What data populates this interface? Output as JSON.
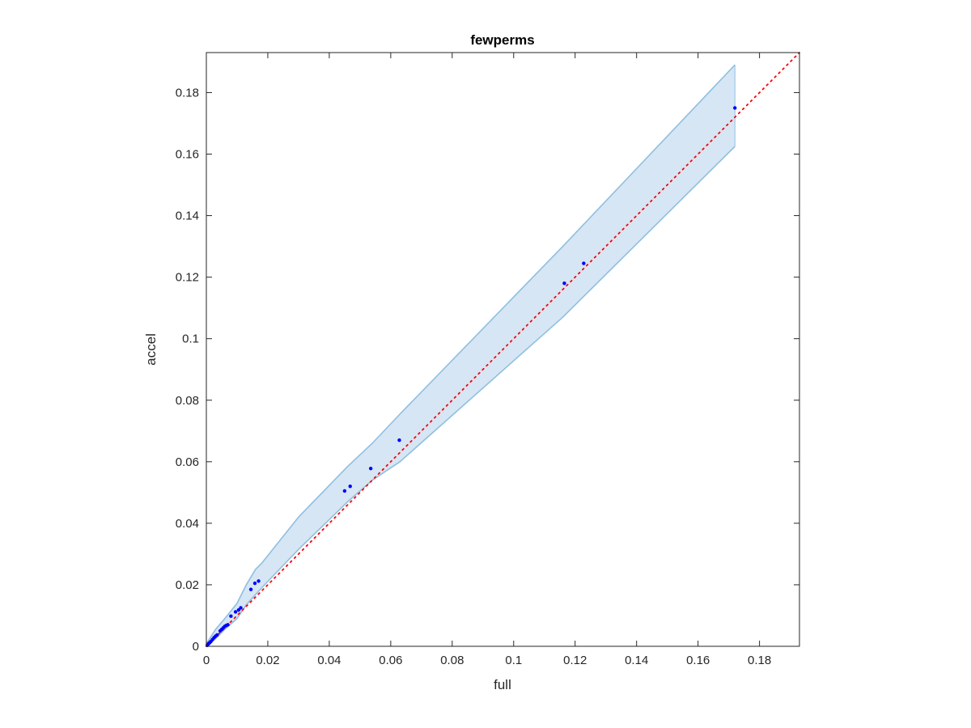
{
  "chart_data": {
    "type": "scatter",
    "title": "fewperms",
    "xlabel": "full",
    "ylabel": "accel",
    "xlim": [
      0,
      0.193
    ],
    "ylim": [
      0,
      0.193
    ],
    "grid": false,
    "legend": "none",
    "xticks": [
      0,
      0.02,
      0.04,
      0.06,
      0.08,
      0.1,
      0.12,
      0.14,
      0.16,
      0.18
    ],
    "xtick_labels": [
      "0",
      "0.02",
      "0.04",
      "0.06",
      "0.08",
      "0.1",
      "0.12",
      "0.14",
      "0.16",
      "0.18"
    ],
    "yticks": [
      0,
      0.02,
      0.04,
      0.06,
      0.08,
      0.1,
      0.12,
      0.14,
      0.16,
      0.18
    ],
    "ytick_labels": [
      "0",
      "0.02",
      "0.04",
      "0.06",
      "0.08",
      "0.1",
      "0.12",
      "0.14",
      "0.16",
      "0.18"
    ],
    "colors": {
      "points": "#0000ff",
      "band_fill": "#d6e6f4",
      "band_edge": "#8fbfe0",
      "reference_line": "#ff0000",
      "axes": "#262626"
    },
    "points": [
      [
        0.0003,
        0.0003
      ],
      [
        0.0006,
        0.0007
      ],
      [
        0.0009,
        0.001
      ],
      [
        0.0012,
        0.0013
      ],
      [
        0.0015,
        0.0016
      ],
      [
        0.002,
        0.0022
      ],
      [
        0.0025,
        0.0028
      ],
      [
        0.003,
        0.0033
      ],
      [
        0.0035,
        0.0037
      ],
      [
        0.0045,
        0.005
      ],
      [
        0.005,
        0.0055
      ],
      [
        0.0055,
        0.006
      ],
      [
        0.006,
        0.0065
      ],
      [
        0.0065,
        0.0068
      ],
      [
        0.007,
        0.007
      ],
      [
        0.008,
        0.0098
      ],
      [
        0.0095,
        0.0112
      ],
      [
        0.0105,
        0.0118
      ],
      [
        0.0112,
        0.0125
      ],
      [
        0.0145,
        0.0185
      ],
      [
        0.0158,
        0.0205
      ],
      [
        0.017,
        0.0212
      ],
      [
        0.045,
        0.0505
      ],
      [
        0.0468,
        0.052
      ],
      [
        0.0535,
        0.0578
      ],
      [
        0.0628,
        0.067
      ],
      [
        0.1165,
        0.118
      ],
      [
        0.1228,
        0.1245
      ],
      [
        0.172,
        0.175
      ]
    ],
    "band_upper": [
      [
        0,
        0.0008
      ],
      [
        0.003,
        0.0055
      ],
      [
        0.006,
        0.009
      ],
      [
        0.01,
        0.014
      ],
      [
        0.013,
        0.02
      ],
      [
        0.016,
        0.025
      ],
      [
        0.018,
        0.027
      ],
      [
        0.03,
        0.042
      ],
      [
        0.046,
        0.0585
      ],
      [
        0.054,
        0.066
      ],
      [
        0.063,
        0.0755
      ],
      [
        0.116,
        0.13
      ],
      [
        0.172,
        0.189
      ]
    ],
    "band_lower": [
      [
        0,
        0
      ],
      [
        0.003,
        0.0025
      ],
      [
        0.006,
        0.0055
      ],
      [
        0.01,
        0.009
      ],
      [
        0.013,
        0.0135
      ],
      [
        0.018,
        0.019
      ],
      [
        0.03,
        0.0315
      ],
      [
        0.046,
        0.047
      ],
      [
        0.054,
        0.054
      ],
      [
        0.063,
        0.06
      ],
      [
        0.116,
        0.107
      ],
      [
        0.172,
        0.1625
      ]
    ],
    "reference_line": {
      "style": "dotted",
      "from": [
        0,
        0
      ],
      "to": [
        0.193,
        0.193
      ]
    }
  }
}
